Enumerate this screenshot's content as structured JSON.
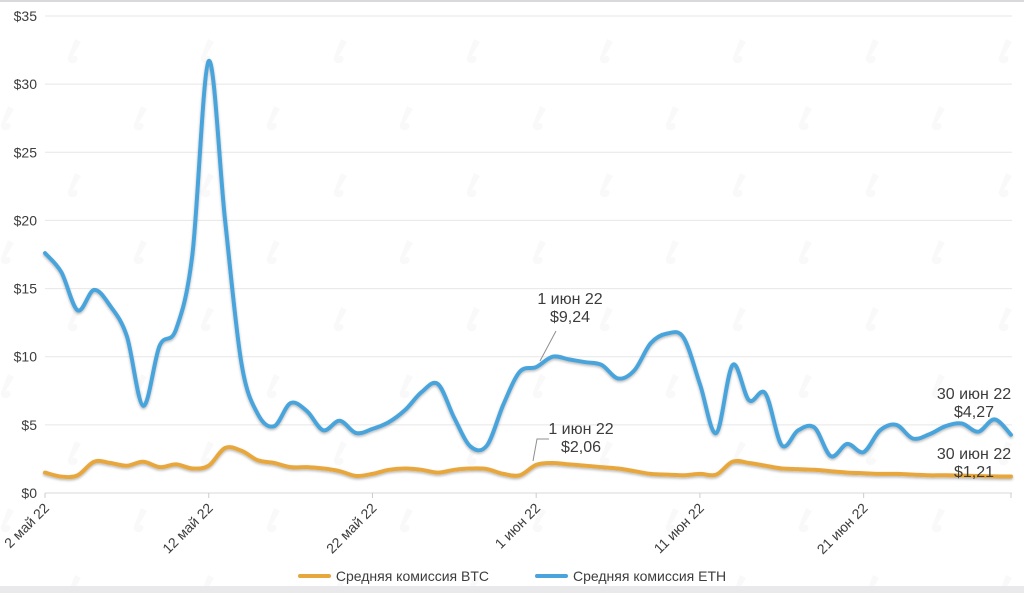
{
  "chart_data": {
    "type": "line",
    "title": "",
    "xlabel": "",
    "ylabel": "",
    "ylim": [
      0,
      35
    ],
    "grid": true,
    "legend_position": "bottom",
    "y_tick_labels": [
      "$0",
      "$5",
      "$10",
      "$15",
      "$20",
      "$25",
      "$30",
      "$35"
    ],
    "y_tick_values": [
      0,
      5,
      10,
      15,
      20,
      25,
      30,
      35
    ],
    "x_tick_labels": [
      "2 май 22",
      "12 май 22",
      "22 май 22",
      "1 июн 22",
      "11 июн 22",
      "21 июн 22"
    ],
    "x_tick_day_indices": [
      0,
      10,
      20,
      30,
      40,
      50
    ],
    "x_range_days": 60,
    "series": [
      {
        "name": "Средняя комиссия BTC",
        "color": "#e8a73c",
        "values": [
          1.5,
          1.2,
          1.3,
          2.3,
          2.2,
          2.0,
          2.3,
          1.9,
          2.1,
          1.8,
          2.0,
          3.3,
          3.1,
          2.4,
          2.2,
          1.9,
          1.9,
          1.8,
          1.6,
          1.25,
          1.4,
          1.7,
          1.8,
          1.7,
          1.5,
          1.7,
          1.8,
          1.75,
          1.4,
          1.3,
          2.06,
          2.2,
          2.1,
          2.0,
          1.9,
          1.8,
          1.6,
          1.4,
          1.35,
          1.3,
          1.4,
          1.35,
          2.3,
          2.2,
          2.0,
          1.8,
          1.75,
          1.7,
          1.6,
          1.5,
          1.45,
          1.4,
          1.4,
          1.35,
          1.3,
          1.3,
          1.28,
          1.25,
          1.22,
          1.21
        ]
      },
      {
        "name": "Средняя комиссия ETH",
        "color": "#4aa4db",
        "values": [
          17.6,
          16.2,
          13.4,
          14.9,
          13.7,
          11.5,
          6.4,
          10.8,
          12.0,
          17.5,
          31.7,
          20.0,
          9.5,
          5.8,
          4.9,
          6.6,
          6.0,
          4.6,
          5.3,
          4.4,
          4.7,
          5.2,
          6.1,
          7.4,
          8.0,
          5.5,
          3.4,
          3.5,
          6.5,
          8.9,
          9.24,
          10.0,
          9.8,
          9.6,
          9.4,
          8.4,
          9.0,
          11.0,
          11.7,
          11.4,
          8.0,
          4.4,
          9.4,
          6.8,
          7.3,
          3.5,
          4.6,
          4.8,
          2.7,
          3.6,
          3.0,
          4.6,
          5.0,
          4.0,
          4.3,
          4.9,
          5.1,
          4.5,
          5.4,
          4.27
        ]
      }
    ],
    "annotations": [
      {
        "date": "1 июн 22",
        "value": "$9,24",
        "series": "Средняя комиссия ETH",
        "day_index": 30
      },
      {
        "date": "1 июн 22",
        "value": "$2,06",
        "series": "Средняя комиссия BTC",
        "day_index": 30
      },
      {
        "date": "30 июн 22",
        "value": "$4,27",
        "series": "Средняя комиссия ETH",
        "day_index": 59
      },
      {
        "date": "30 июн 22",
        "value": "$1,21",
        "series": "Средняя комиссия BTC",
        "day_index": 59
      }
    ]
  },
  "legend": {
    "items": [
      {
        "label": "Средняя комиссия BTC",
        "color": "#e8a73c"
      },
      {
        "label": "Средняя комиссия ETH",
        "color": "#4aa4db"
      }
    ]
  },
  "watermark": {
    "icon": "forklog-logo-icon",
    "opacity": 0.035
  },
  "colors": {
    "gridline": "#e7e7e7",
    "axis": "#dadada",
    "tick": "#cccccc",
    "label": "#3d3d3d",
    "annotation": "#3c3c3c",
    "leader": "#8f8f8f"
  }
}
